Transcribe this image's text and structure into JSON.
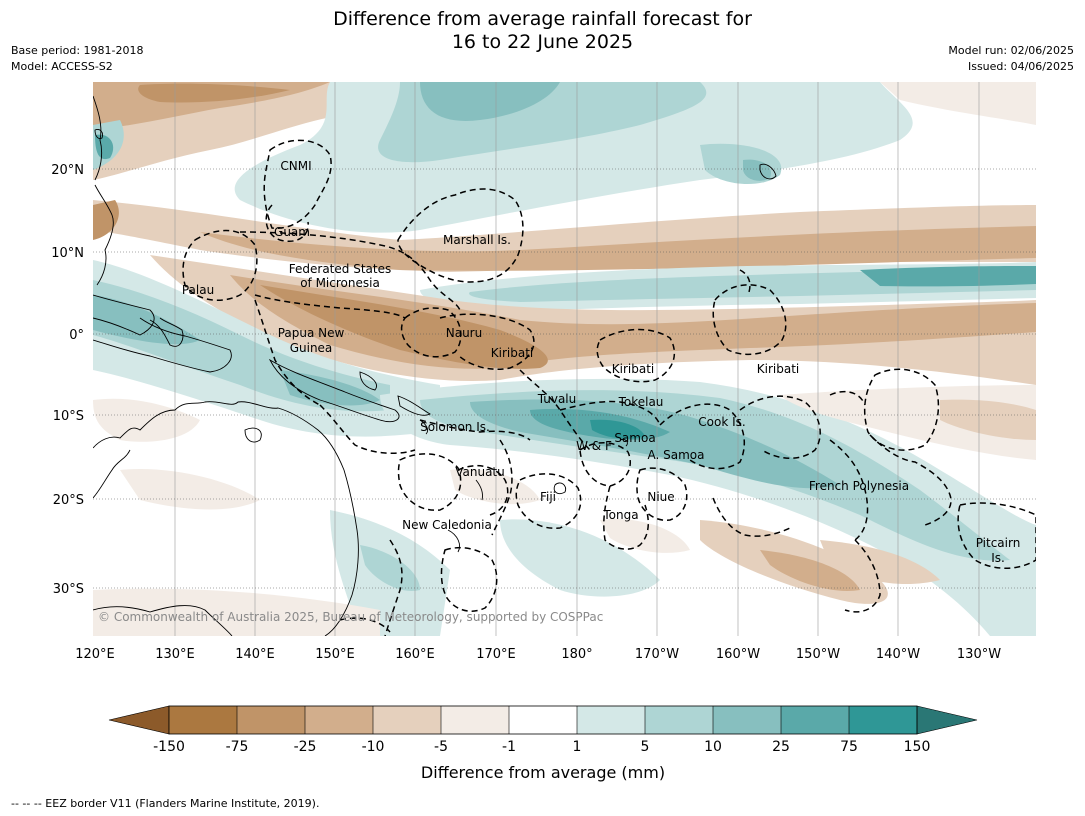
{
  "title": {
    "line1": "Difference from average rainfall forecast for",
    "line2": "16 to 22 June 2025"
  },
  "meta": {
    "base_period": "Base period: 1981-2018",
    "model": "Model: ACCESS-S2",
    "model_run": "Model run: 02/06/2025",
    "issued": "Issued: 04/06/2025"
  },
  "axes": {
    "lon_labels": [
      "120°E",
      "130°E",
      "140°E",
      "150°E",
      "160°E",
      "170°E",
      "180°",
      "170°W",
      "160°W",
      "150°W",
      "140°W",
      "130°W"
    ],
    "lat_labels": [
      "20°N",
      "10°N",
      "0°",
      "10°S",
      "20°S",
      "30°S"
    ]
  },
  "places": {
    "cnmi": "CNMI",
    "guam": "Guam",
    "marshall": "Marshall Is.",
    "fsm1": "Federated States",
    "fsm2": "of Micronesia",
    "palau": "Palau",
    "png1": "Papua New",
    "png2": "Guinea",
    "nauru": "Nauru",
    "kiribati_w": "Kiribati",
    "kiribati_c": "Kiribati",
    "kiribati_e": "Kiribati",
    "tuvalu": "Tuvalu",
    "tokelau": "Tokelau",
    "solomon": "Solomon Is.",
    "cook": "Cook Is.",
    "samoa": "Samoa",
    "wf": "W & F",
    "asamoa": "A. Samoa",
    "vanuatu": "Vanuatu",
    "fiji": "Fiji",
    "niue": "Niue",
    "tonga": "Tonga",
    "french_polynesia": "French Polynesia",
    "new_caledonia": "New Caledonia",
    "pitcairn1": "Pitcairn",
    "pitcairn2": "Is."
  },
  "copyright": "© Commonwealth of Australia 2025, Bureau of Meteorology, supported by COSPPac",
  "colorbar": {
    "labels": [
      "-150",
      "-75",
      "-25",
      "-10",
      "-5",
      "-1",
      "1",
      "5",
      "10",
      "25",
      "75",
      "150"
    ],
    "colors": {
      "extend_low": "#8c5a2a",
      "c1": "#ab7840",
      "c2": "#c09468",
      "c3": "#d2ae8c",
      "c4": "#e5d0bd",
      "c5": "#f3ece6",
      "c6": "#ffffff",
      "c7": "#d4e8e7",
      "c8": "#aed5d4",
      "c9": "#87bfbf",
      "c10": "#5aa9a9",
      "c11": "#2f9796",
      "extend_high": "#2a7775"
    },
    "title": "Difference from average (mm)"
  },
  "footnote": "--  --  -- EEZ border V11 (Flanders Marine Institute, 2019)."
}
